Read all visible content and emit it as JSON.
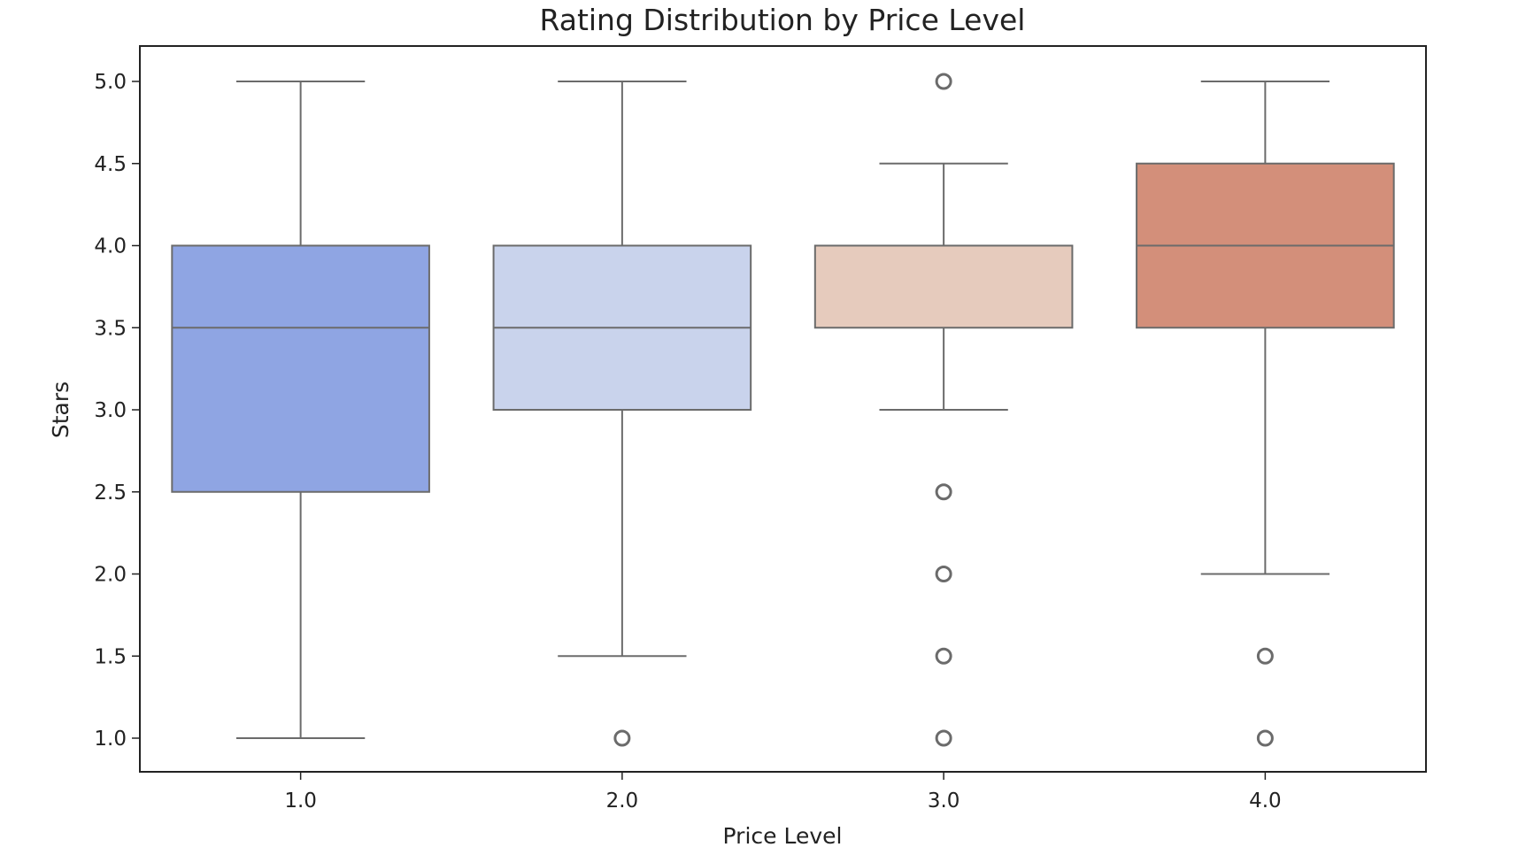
{
  "chart_data": {
    "type": "box",
    "title": "Rating Distribution by Price Level",
    "xlabel": "Price Level",
    "ylabel": "Stars",
    "ylim": [
      0.9,
      5.1
    ],
    "yticks": [
      "1.0",
      "1.5",
      "2.0",
      "2.5",
      "3.0",
      "3.5",
      "4.0",
      "4.5",
      "5.0"
    ],
    "grid": false,
    "categories": [
      "1.0",
      "2.0",
      "3.0",
      "4.0"
    ],
    "boxes": [
      {
        "category": "1.0",
        "whisker_low": 1.0,
        "q1": 2.5,
        "median": 3.5,
        "q3": 4.0,
        "whisker_high": 5.0,
        "outliers": [],
        "color": "#8fa5e3"
      },
      {
        "category": "2.0",
        "whisker_low": 1.5,
        "q1": 3.0,
        "median": 3.5,
        "q3": 4.0,
        "whisker_high": 5.0,
        "outliers": [
          1.0
        ],
        "color": "#c9d3ec"
      },
      {
        "category": "3.0",
        "whisker_low": 3.0,
        "q1": 3.5,
        "median": 4.0,
        "q3": 4.0,
        "whisker_high": 4.5,
        "outliers": [
          5.0,
          2.5,
          2.0,
          1.5,
          1.0
        ],
        "color": "#e6cbbd"
      },
      {
        "category": "4.0",
        "whisker_low": 2.0,
        "q1": 3.5,
        "median": 4.0,
        "q3": 4.5,
        "whisker_high": 5.0,
        "outliers": [
          1.5,
          1.0
        ],
        "color": "#d38f7a"
      }
    ]
  }
}
